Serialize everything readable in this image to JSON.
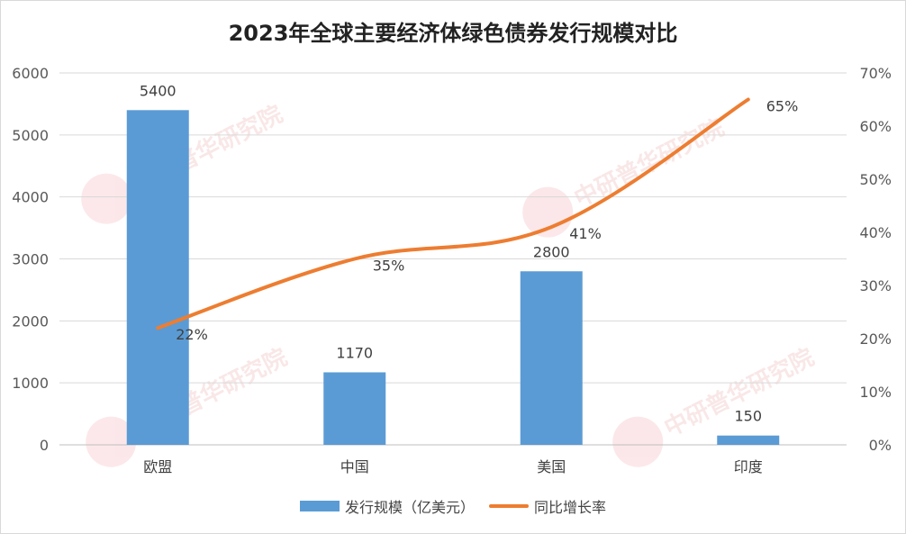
{
  "chart_data": {
    "type": "bar",
    "title": "2023年全球主要经济体绿色债券发行规模对比",
    "categories": [
      "欧盟",
      "中国",
      "美国",
      "印度"
    ],
    "series": [
      {
        "name": "发行规模（亿美元）",
        "type": "bar",
        "axis": "left",
        "values": [
          5400,
          1170,
          2800,
          150
        ],
        "color": "#5b9bd5",
        "labels": [
          "5400",
          "1170",
          "2800",
          "150"
        ]
      },
      {
        "name": "同比增长率",
        "type": "line",
        "axis": "right",
        "values": [
          22,
          35,
          41,
          65
        ],
        "color": "#ed7d31",
        "labels": [
          "22%",
          "35%",
          "41%",
          "65%"
        ]
      }
    ],
    "y_left": {
      "min": 0,
      "max": 6000,
      "ticks": [
        "0",
        "1000",
        "2000",
        "3000",
        "4000",
        "5000",
        "6000"
      ]
    },
    "y_right": {
      "min": 0,
      "max": 70,
      "ticks": [
        "0%",
        "10%",
        "20%",
        "30%",
        "40%",
        "50%",
        "60%",
        "70%"
      ]
    },
    "grid": true,
    "legend_position": "bottom",
    "watermark": {
      "text": "中研普华研究院",
      "url": "www.ChinaIRN.com",
      "logo": "CIRN"
    }
  }
}
